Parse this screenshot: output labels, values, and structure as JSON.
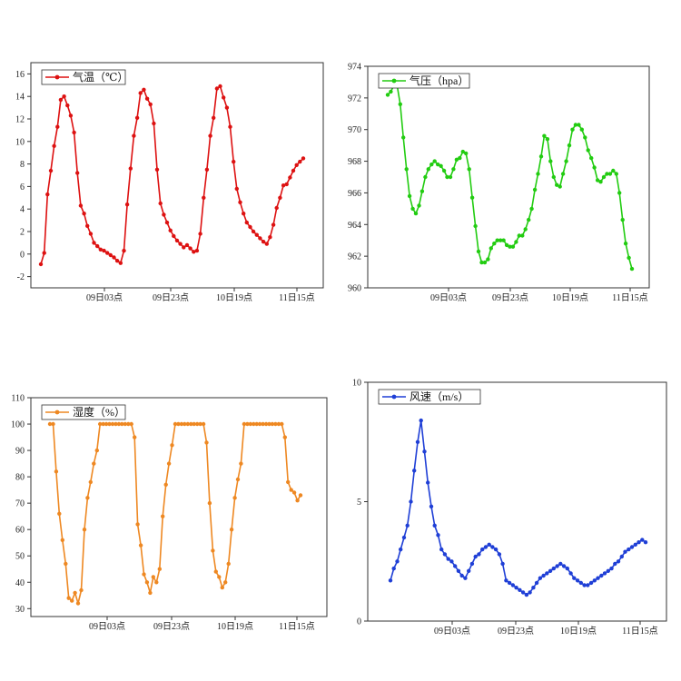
{
  "chart_data": [
    {
      "type": "line",
      "legend": "气温（℃）",
      "color": "#dd1111",
      "ylim": [
        -3,
        17
      ],
      "yticks": [
        -2,
        0,
        2,
        4,
        6,
        8,
        10,
        12,
        14,
        16
      ],
      "xticks": [
        "09日03点",
        "09日23点",
        "10日19点",
        "11日15点"
      ],
      "legend_position": "top-left",
      "values": [
        -0.9,
        0.1,
        5.3,
        7.4,
        9.6,
        11.3,
        13.7,
        14.0,
        13.2,
        12.3,
        10.8,
        7.2,
        4.3,
        3.6,
        2.5,
        1.8,
        1.0,
        0.7,
        0.4,
        0.3,
        0.1,
        -0.1,
        -0.3,
        -0.6,
        -0.8,
        0.3,
        4.4,
        7.6,
        10.5,
        12.1,
        14.3,
        14.6,
        13.8,
        13.3,
        11.6,
        7.5,
        4.5,
        3.5,
        2.8,
        2.1,
        1.6,
        1.2,
        0.9,
        0.6,
        0.8,
        0.5,
        0.2,
        0.3,
        1.8,
        5.0,
        7.5,
        10.5,
        12.1,
        14.7,
        14.9,
        13.9,
        13.0,
        11.3,
        8.2,
        5.8,
        4.6,
        3.6,
        2.8,
        2.4,
        2.0,
        1.7,
        1.4,
        1.1,
        0.9,
        1.5,
        2.6,
        4.1,
        5.0,
        6.1,
        6.2,
        6.8,
        7.4,
        7.9,
        8.2,
        8.5
      ]
    },
    {
      "type": "line",
      "legend": "气压（hpa）",
      "color": "#22cc11",
      "ylim": [
        960,
        974
      ],
      "yticks": [
        960,
        962,
        964,
        966,
        968,
        970,
        972,
        974
      ],
      "xticks": [
        "09日03点",
        "09日23点",
        "10日19点",
        "11日15点"
      ],
      "legend_position": "top-left",
      "values": [
        972.2,
        972.4,
        972.8,
        972.8,
        971.6,
        969.5,
        967.5,
        965.8,
        965.0,
        964.7,
        965.2,
        966.1,
        967.0,
        967.5,
        967.8,
        968.0,
        967.8,
        967.7,
        967.4,
        967.0,
        967.0,
        967.5,
        968.1,
        968.2,
        968.6,
        968.5,
        967.5,
        965.7,
        963.9,
        962.3,
        961.6,
        961.6,
        961.8,
        962.5,
        962.8,
        963.0,
        963.0,
        963.0,
        962.7,
        962.6,
        962.6,
        962.9,
        963.3,
        963.3,
        963.7,
        964.3,
        965.0,
        966.2,
        967.2,
        968.3,
        969.6,
        969.4,
        968.0,
        967.0,
        966.5,
        966.4,
        967.2,
        968.0,
        969.0,
        970.0,
        970.3,
        970.3,
        970.0,
        969.5,
        968.7,
        968.2,
        967.6,
        966.8,
        966.7,
        967.0,
        967.2,
        967.2,
        967.4,
        967.2,
        966.0,
        964.3,
        962.8,
        961.9,
        961.2
      ]
    },
    {
      "type": "line",
      "legend": "湿度（%）",
      "color": "#ee8822",
      "ylim": [
        27,
        110
      ],
      "yticks": [
        30,
        40,
        50,
        60,
        70,
        80,
        90,
        100,
        110
      ],
      "xticks": [
        "09日03点",
        "09日23点",
        "10日19点",
        "11日15点"
      ],
      "legend_position": "top-left",
      "values": [
        100,
        100,
        82,
        66,
        56,
        47,
        34,
        33,
        36,
        32,
        37,
        60,
        72,
        78,
        85,
        90,
        100,
        100,
        100,
        100,
        100,
        100,
        100,
        100,
        100,
        100,
        100,
        95,
        62,
        54,
        43,
        40,
        36,
        42,
        40,
        45,
        65,
        77,
        85,
        92,
        100,
        100,
        100,
        100,
        100,
        100,
        100,
        100,
        100,
        100,
        93,
        70,
        52,
        44,
        42,
        38,
        40,
        47,
        60,
        72,
        79,
        85,
        100,
        100,
        100,
        100,
        100,
        100,
        100,
        100,
        100,
        100,
        100,
        100,
        100,
        95,
        78,
        75,
        74,
        71,
        73
      ]
    },
    {
      "type": "line",
      "legend": "风速（m/s）",
      "color": "#1f3fd6",
      "ylim": [
        0,
        10
      ],
      "yticks": [
        0,
        5,
        10
      ],
      "xticks": [
        "09日03点",
        "09日23点",
        "10日19点",
        "11日15点"
      ],
      "legend_position": "top-left",
      "values": [
        1.7,
        2.2,
        2.5,
        3.0,
        3.5,
        4.0,
        5.0,
        6.3,
        7.5,
        8.4,
        7.1,
        5.8,
        4.8,
        4.0,
        3.6,
        3.0,
        2.8,
        2.6,
        2.5,
        2.3,
        2.1,
        1.9,
        1.8,
        2.1,
        2.4,
        2.7,
        2.8,
        3.0,
        3.1,
        3.2,
        3.1,
        3.0,
        2.8,
        2.4,
        1.7,
        1.6,
        1.5,
        1.4,
        1.3,
        1.2,
        1.1,
        1.2,
        1.4,
        1.6,
        1.8,
        1.9,
        2.0,
        2.1,
        2.2,
        2.3,
        2.4,
        2.3,
        2.2,
        2.0,
        1.8,
        1.7,
        1.6,
        1.5,
        1.5,
        1.6,
        1.7,
        1.8,
        1.9,
        2.0,
        2.1,
        2.2,
        2.4,
        2.5,
        2.7,
        2.9,
        3.0,
        3.1,
        3.2,
        3.3,
        3.4,
        3.3
      ]
    }
  ]
}
